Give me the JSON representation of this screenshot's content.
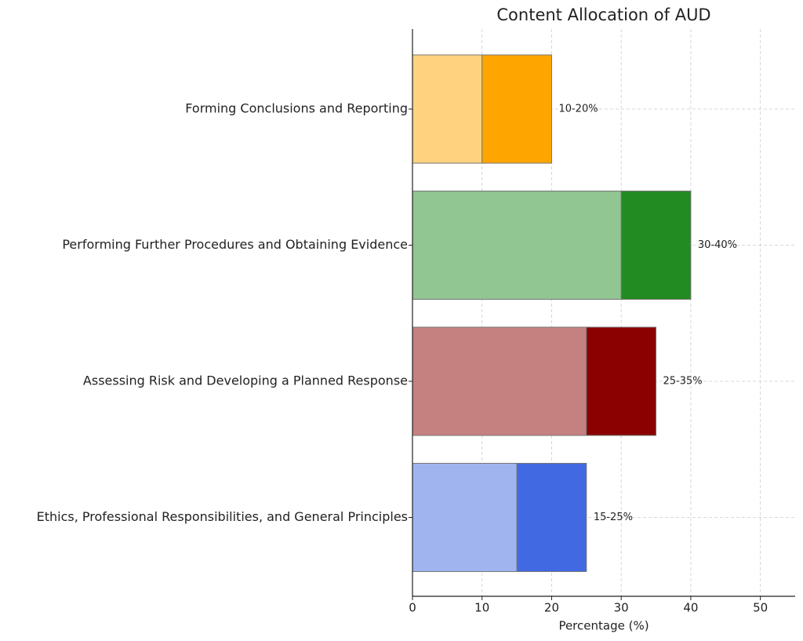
{
  "chart_data": {
    "type": "range-bar",
    "title": "Content Allocation of AUD",
    "xlabel": "Percentage (%)",
    "categories": [
      "Forming Conclusions and Reporting",
      "Performing Further Procedures and Obtaining Evidence",
      "Assessing Risk and Developing a Planned Response",
      "Ethics, Professional Responsibilities, and General Principles"
    ],
    "low": [
      10,
      30,
      25,
      15
    ],
    "high": [
      20,
      40,
      35,
      25
    ],
    "value_labels": [
      "10-20%",
      "30-40%",
      "25-35%",
      "15-25%"
    ],
    "light_colors": [
      "#ffd280",
      "#91c591",
      "#c58080",
      "#a0b4f0"
    ],
    "dark_colors": [
      "#ffa500",
      "#228b22",
      "#8b0000",
      "#4169e1"
    ],
    "xlim": [
      0,
      55
    ],
    "xticks": [
      0,
      10,
      20,
      30,
      40,
      50
    ],
    "grid": true
  }
}
